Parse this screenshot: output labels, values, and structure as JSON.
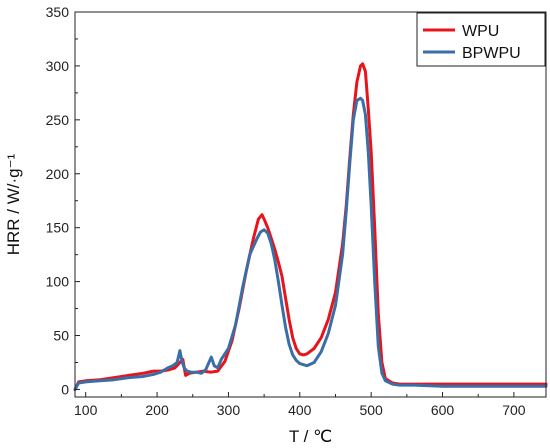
{
  "chart_data": {
    "type": "line",
    "xlabel": "T / ℃",
    "ylabel": "HRR / W/·g⁻¹",
    "xlim": [
      85,
      745
    ],
    "ylim": [
      -7,
      350
    ],
    "x_ticks": [
      100,
      200,
      300,
      400,
      500,
      600,
      700
    ],
    "y_ticks": [
      0,
      50,
      100,
      150,
      200,
      250,
      300,
      350
    ],
    "grid": false,
    "legend_position": "top-right",
    "series": [
      {
        "name": "WPU",
        "color": "#e8141c",
        "x": [
          85,
          90,
          100,
          120,
          140,
          160,
          180,
          195,
          205,
          215,
          225,
          232,
          236,
          240,
          245,
          255,
          265,
          275,
          285,
          295,
          305,
          315,
          325,
          335,
          342,
          347,
          350,
          355,
          360,
          365,
          370,
          375,
          380,
          385,
          390,
          395,
          400,
          405,
          410,
          420,
          430,
          440,
          450,
          460,
          465,
          470,
          475,
          480,
          485,
          488,
          492,
          496,
          500,
          505,
          510,
          515,
          520,
          530,
          540,
          560,
          600,
          650,
          700,
          745
        ],
        "y": [
          0,
          7,
          8,
          9,
          11,
          13,
          15,
          17,
          17,
          18,
          20,
          25,
          28,
          13,
          15,
          16,
          17,
          16,
          17,
          26,
          45,
          75,
          110,
          140,
          158,
          162,
          158,
          150,
          140,
          130,
          118,
          105,
          85,
          65,
          48,
          38,
          33,
          32,
          33,
          38,
          48,
          65,
          90,
          135,
          170,
          215,
          255,
          285,
          300,
          302,
          295,
          260,
          220,
          150,
          70,
          25,
          10,
          6,
          5,
          5,
          5,
          5,
          5,
          5
        ]
      },
      {
        "name": "BPWPU",
        "color": "#3a6ea5",
        "x": [
          85,
          90,
          100,
          120,
          140,
          160,
          180,
          195,
          205,
          215,
          222,
          228,
          232,
          235,
          238,
          242,
          248,
          255,
          262,
          268,
          272,
          276,
          280,
          285,
          290,
          300,
          310,
          320,
          330,
          340,
          345,
          350,
          355,
          360,
          365,
          370,
          375,
          380,
          385,
          390,
          395,
          400,
          410,
          420,
          430,
          440,
          450,
          460,
          465,
          470,
          475,
          480,
          485,
          488,
          492,
          496,
          500,
          505,
          510,
          515,
          520,
          530,
          540,
          560,
          600,
          650,
          700,
          745
        ],
        "y": [
          0,
          6,
          7,
          8,
          9,
          11,
          12,
          14,
          16,
          20,
          22,
          25,
          36,
          26,
          20,
          17,
          16,
          16,
          15,
          18,
          24,
          30,
          22,
          20,
          28,
          38,
          60,
          95,
          125,
          140,
          146,
          148,
          145,
          135,
          120,
          100,
          78,
          58,
          42,
          32,
          27,
          24,
          22,
          25,
          35,
          52,
          78,
          125,
          165,
          210,
          250,
          268,
          270,
          268,
          255,
          220,
          170,
          100,
          40,
          15,
          8,
          5,
          4,
          4,
          3,
          3,
          3,
          3
        ]
      }
    ]
  }
}
